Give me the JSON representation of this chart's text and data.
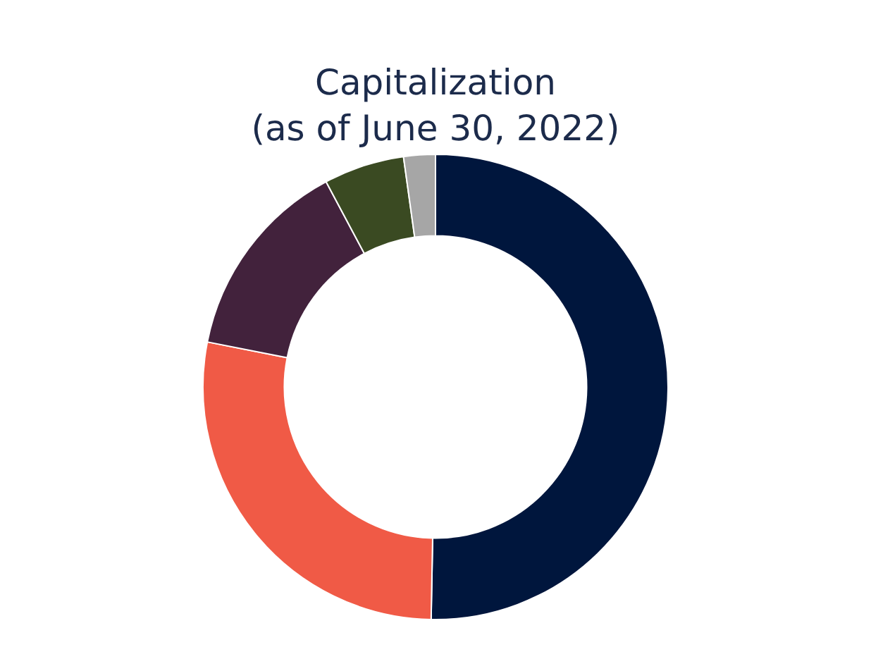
{
  "chart_data": {
    "type": "donut",
    "title": "Capitalization\n(as of June 30, 2022)",
    "categories": [
      null,
      null,
      null,
      null,
      null
    ],
    "values": [
      50.3,
      27.8,
      14.1,
      5.6,
      2.2
    ],
    "colors": [
      "#00163d",
      "#f05a46",
      "#42223c",
      "#3a4a22",
      "#a6a6a6"
    ],
    "legend": false
  }
}
